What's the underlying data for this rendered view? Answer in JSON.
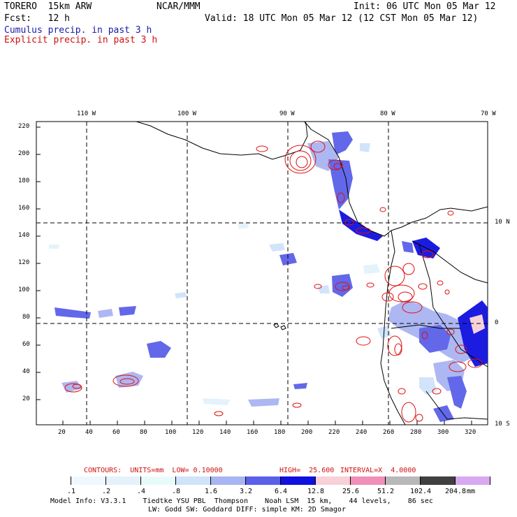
{
  "header": {
    "model": "TORERO  15km ARW",
    "org": "NCAR/MMM",
    "init": "Init: 06 UTC Mon 05 Mar 12",
    "fcst": "Fcst:   12 h",
    "valid": "Valid: 18 UTC Mon 05 Mar 12 (12 CST Mon 05 Mar 12)",
    "field_blue": "Cumulus precip. in past 3 h",
    "field_red": "Explicit precip. in past 3 h"
  },
  "map": {
    "lon_labels": [
      "110 W",
      "100 W",
      "90 W",
      "80 W",
      "70 W"
    ],
    "lat_labels": [
      "10 N",
      "0",
      "10 S"
    ],
    "y_ticks": [
      "220",
      "200",
      "180",
      "160",
      "140",
      "120",
      "100",
      "80",
      "60",
      "40",
      "20"
    ],
    "x_ticks": [
      "20",
      "40",
      "60",
      "80",
      "100",
      "120",
      "140",
      "160",
      "180",
      "200",
      "220",
      "240",
      "260",
      "280",
      "300",
      "320"
    ]
  },
  "contours": {
    "label": "CONTOURS:  UNITS=mm  LOW= 0.10000",
    "high": "HIGH=  25.600",
    "interval": "INTERVAL=X  4.0000"
  },
  "colorbar": {
    "labels": [
      ".1",
      ".2",
      ".4",
      ".8",
      "1.6",
      "3.2",
      "6.4",
      "12.8",
      "25.6",
      "51.2",
      "102.4",
      "204.8"
    ],
    "unit": "mm",
    "colors": [
      "#ffffff",
      "#f0f8ff",
      "#e3f2fb",
      "#e8fbfb",
      "#cfe3fa",
      "#a9b4f2",
      "#5a60e8",
      "#1010e0",
      "#f8d0d8",
      "#f090b8",
      "#b8b8b8",
      "#404040",
      "#d8a8f0"
    ]
  },
  "footer": {
    "line1": "Model Info: V3.3.1    Tiedtke YSU PBL  Thompson    Noah LSM  15 km,    44 levels,    86 sec",
    "line2": "LW: Godd SW: Goddard DIFF: simple KM: 2D Smagor"
  }
}
